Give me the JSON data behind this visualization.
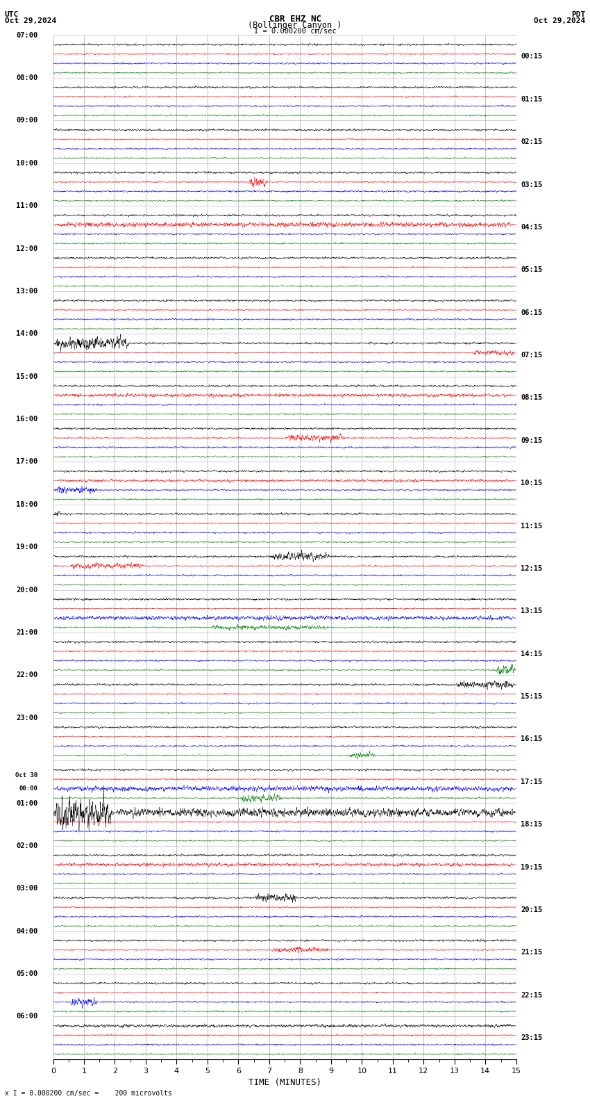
{
  "title_line1": "CBR EHZ NC",
  "title_line2": "(Bollinger Canyon )",
  "scale_label": "I = 0.000200 cm/sec",
  "utc_label": "UTC",
  "utc_date": "Oct 29,2024",
  "pdt_label": "PDT",
  "pdt_date": "Oct 29,2024",
  "bottom_label": "x I = 0.000200 cm/sec =    200 microvolts",
  "xlabel": "TIME (MINUTES)",
  "left_times": [
    "07:00",
    "08:00",
    "09:00",
    "10:00",
    "11:00",
    "12:00",
    "13:00",
    "14:00",
    "15:00",
    "16:00",
    "17:00",
    "18:00",
    "19:00",
    "20:00",
    "21:00",
    "22:00",
    "23:00",
    "Oct 30\n00:00",
    "01:00",
    "02:00",
    "03:00",
    "04:00",
    "05:00",
    "06:00"
  ],
  "right_times": [
    "00:15",
    "01:15",
    "02:15",
    "03:15",
    "04:15",
    "05:15",
    "06:15",
    "07:15",
    "08:15",
    "09:15",
    "10:15",
    "11:15",
    "12:15",
    "13:15",
    "14:15",
    "15:15",
    "16:15",
    "17:15",
    "18:15",
    "19:15",
    "20:15",
    "21:15",
    "22:15",
    "23:15"
  ],
  "n_rows": 24,
  "n_traces_per_row": 4,
  "colors": [
    "black",
    "red",
    "blue",
    "green"
  ],
  "bg_color": "white",
  "grid_color": "#888888",
  "time_minutes": 15,
  "seed": 42
}
